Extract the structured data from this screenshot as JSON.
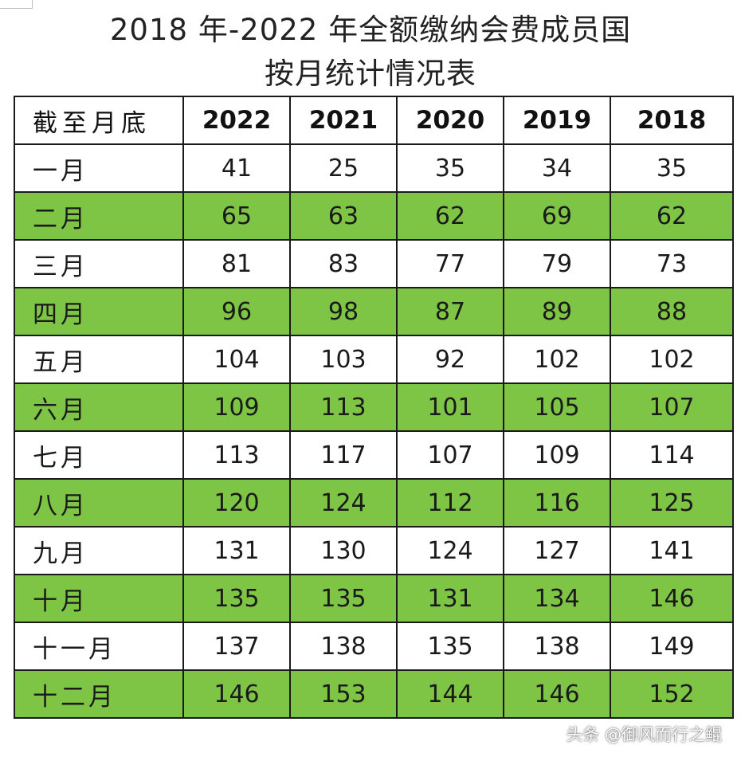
{
  "title": {
    "line1": "2018 年-2022 年全额缴纳会费成员国",
    "line2": "按月统计情况表"
  },
  "table": {
    "columns": [
      "截至月底",
      "2022",
      "2021",
      "2020",
      "2019",
      "2018"
    ],
    "rows": [
      [
        "一月",
        "41",
        "25",
        "35",
        "34",
        "35"
      ],
      [
        "二月",
        "65",
        "63",
        "62",
        "69",
        "62"
      ],
      [
        "三月",
        "81",
        "83",
        "77",
        "79",
        "73"
      ],
      [
        "四月",
        "96",
        "98",
        "87",
        "89",
        "88"
      ],
      [
        "五月",
        "104",
        "103",
        "92",
        "102",
        "102"
      ],
      [
        "六月",
        "109",
        "113",
        "101",
        "105",
        "107"
      ],
      [
        "七月",
        "113",
        "117",
        "107",
        "109",
        "114"
      ],
      [
        "八月",
        "120",
        "124",
        "112",
        "116",
        "125"
      ],
      [
        "九月",
        "131",
        "130",
        "124",
        "127",
        "141"
      ],
      [
        "十月",
        "135",
        "135",
        "131",
        "134",
        "146"
      ],
      [
        "十一月",
        "137",
        "138",
        "135",
        "138",
        "149"
      ],
      [
        "十二月",
        "146",
        "153",
        "144",
        "146",
        "152"
      ]
    ],
    "alt_row_color": "#7ec445"
  },
  "watermark": "头条 @御风而行之鲲"
}
